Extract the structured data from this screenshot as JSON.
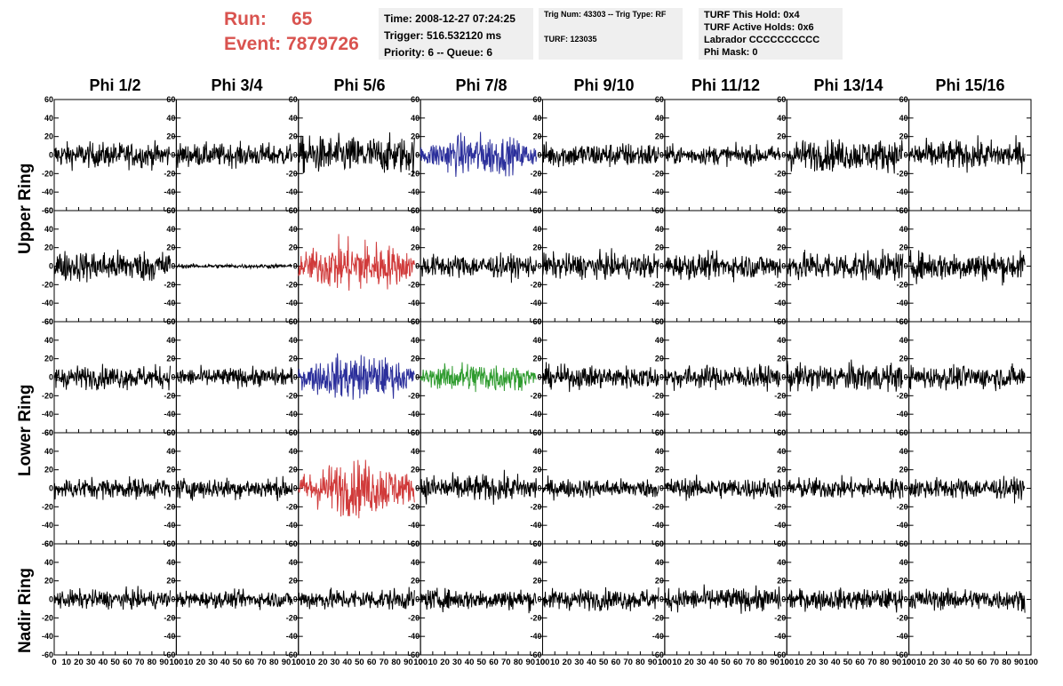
{
  "header": {
    "run_label": "Run:",
    "run_value": "65",
    "event_label": "Event:",
    "event_value": "7879726"
  },
  "info_time": {
    "time": "Time: 2008-12-27 07:24:25",
    "trigger": "Trigger: 516.532120 ms",
    "priority": "Priority: 6 -- Queue: 6"
  },
  "info_trig": {
    "trig": "Trig Num: 43303 -- Trig Type: RF",
    "turf": "TURF: 123035"
  },
  "info_turf": {
    "hold": "TURF This Hold: 0x4",
    "active": "TURF Active Holds: 0x6",
    "labrador": "Labrador CCCCCCCCCC",
    "phimask": "Phi Mask: 0"
  },
  "columns": [
    "Phi 1/2",
    "Phi 3/4",
    "Phi 5/6",
    "Phi 7/8",
    "Phi 9/10",
    "Phi 11/12",
    "Phi 13/14",
    "Phi 15/16"
  ],
  "rings": [
    "Upper Ring",
    "Lower Ring",
    "Nadir Ring"
  ],
  "colors": {
    "trace": "#000000",
    "blue": "#2b2f9b",
    "red": "#d03a3a",
    "green": "#2e9b2e",
    "header_red": "#d9534f",
    "info_bg": "#efefef"
  },
  "chart_data": {
    "type": "line",
    "rows": 5,
    "cols": 8,
    "xlim": [
      0,
      100
    ],
    "ylim": [
      -60,
      60
    ],
    "x_ticks": [
      0,
      10,
      20,
      30,
      40,
      50,
      60,
      70,
      80,
      90,
      100
    ],
    "y_ticks": [
      -60,
      -40,
      -20,
      0,
      20,
      40,
      60
    ],
    "samples": 260,
    "x_range": [
      0,
      95
    ],
    "amplitude_grid": [
      [
        12,
        11,
        18,
        16,
        12,
        9,
        15,
        14
      ],
      [
        15,
        2,
        20,
        11,
        12,
        12,
        14,
        14
      ],
      [
        11,
        9,
        17,
        12,
        11,
        11,
        13,
        11
      ],
      [
        10,
        10,
        21,
        13,
        9,
        10,
        10,
        10
      ],
      [
        9,
        8,
        10,
        10,
        10,
        11,
        10,
        10
      ]
    ],
    "highlighted": [
      {
        "row": 0,
        "col": 3,
        "color": "blue"
      },
      {
        "row": 1,
        "col": 2,
        "color": "red"
      },
      {
        "row": 2,
        "col": 2,
        "color": "blue"
      },
      {
        "row": 2,
        "col": 3,
        "color": "green"
      },
      {
        "row": 3,
        "col": 2,
        "color": "red"
      }
    ]
  }
}
